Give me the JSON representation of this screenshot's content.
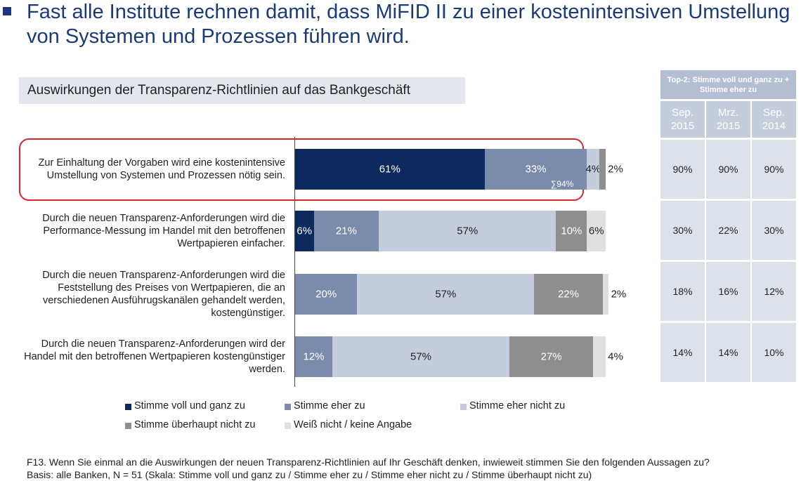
{
  "chart_data": {
    "type": "stacked-barh",
    "title": "Fast alle Institute rechnen damit, dass MiFID II zu einer kostenintensiven Umstellung von Systemen und Prozessen führen wird.",
    "subtitle": "Auswirkungen der Transparenz-Richtlinien auf das Bankgeschäft",
    "categories": [
      "Zur Einhaltung der Vorgaben wird eine kostenintensive Umstellung von Systemen und Prozessen nötig sein.",
      "Durch die neuen Transparenz-Anforderungen wird die Performance-Messung im Handel mit den betroffenen Wertpapieren einfacher.",
      "Durch die neuen Transparenz-Anforderungen wird die Feststellung des Preises von Wertpapieren, die an verschiedenen Ausführugskanälen gehandelt werden, kostengünstiger.",
      "Durch die neuen Transparenz-Anforderungen wird der Handel mit den betroffenen Wertpapieren kostengünstiger werden."
    ],
    "series": [
      {
        "name": "Stimme voll und ganz zu",
        "color": "#0d2a5e",
        "values": [
          61,
          6,
          null,
          null
        ],
        "value_labels": [
          "61%",
          "6%",
          null,
          null
        ]
      },
      {
        "name": "Stimme eher zu",
        "color": "#7b8cab",
        "values": [
          33,
          21,
          20,
          12
        ],
        "value_labels": [
          "33%",
          "21%",
          "20%",
          "12%"
        ]
      },
      {
        "name": "Stimme eher nicht zu",
        "color": "#c5cddd",
        "values": [
          4,
          57,
          57,
          57
        ],
        "value_labels": [
          "4%",
          "57%",
          "57%",
          "57%"
        ]
      },
      {
        "name": "Stimme überhaupt nicht zu",
        "color": "#8e8e8e",
        "values": [
          2,
          10,
          22,
          27
        ],
        "value_labels": [
          "2%",
          "10%",
          "22%",
          "27%"
        ]
      },
      {
        "name": "Weiß nicht / keine Angabe",
        "color": "#e0e0e0",
        "values": [
          null,
          6,
          2,
          4
        ],
        "value_labels": [
          null,
          "6%",
          "2%",
          "4%"
        ]
      }
    ],
    "annotations": [
      "∑94%"
    ],
    "footnotes": [
      "F13. Wenn Sie einmal an die Auswirkungen der neuen Transparenz-Richtlinien auf Ihr Geschäft denken, inwieweit stimmen Sie den folgenden Aussagen zu?",
      "Basis: alle Banken, N = 51 (Skala: Stimme voll und ganz zu / Stimme eher zu / Stimme eher nicht zu / Stimme überhaupt nicht zu)"
    ],
    "top2_table": {
      "title": "Top-2: Stimme voll und ganz zu + Stimme eher zu",
      "columns": [
        "Sep. 2015",
        "Mrz. 2015",
        "Sep. 2014"
      ],
      "rows": [
        [
          "90%",
          "90%",
          "90%"
        ],
        [
          "30%",
          "22%",
          "30%"
        ],
        [
          "18%",
          "16%",
          "12%"
        ],
        [
          "14%",
          "14%",
          "10%"
        ]
      ]
    }
  }
}
